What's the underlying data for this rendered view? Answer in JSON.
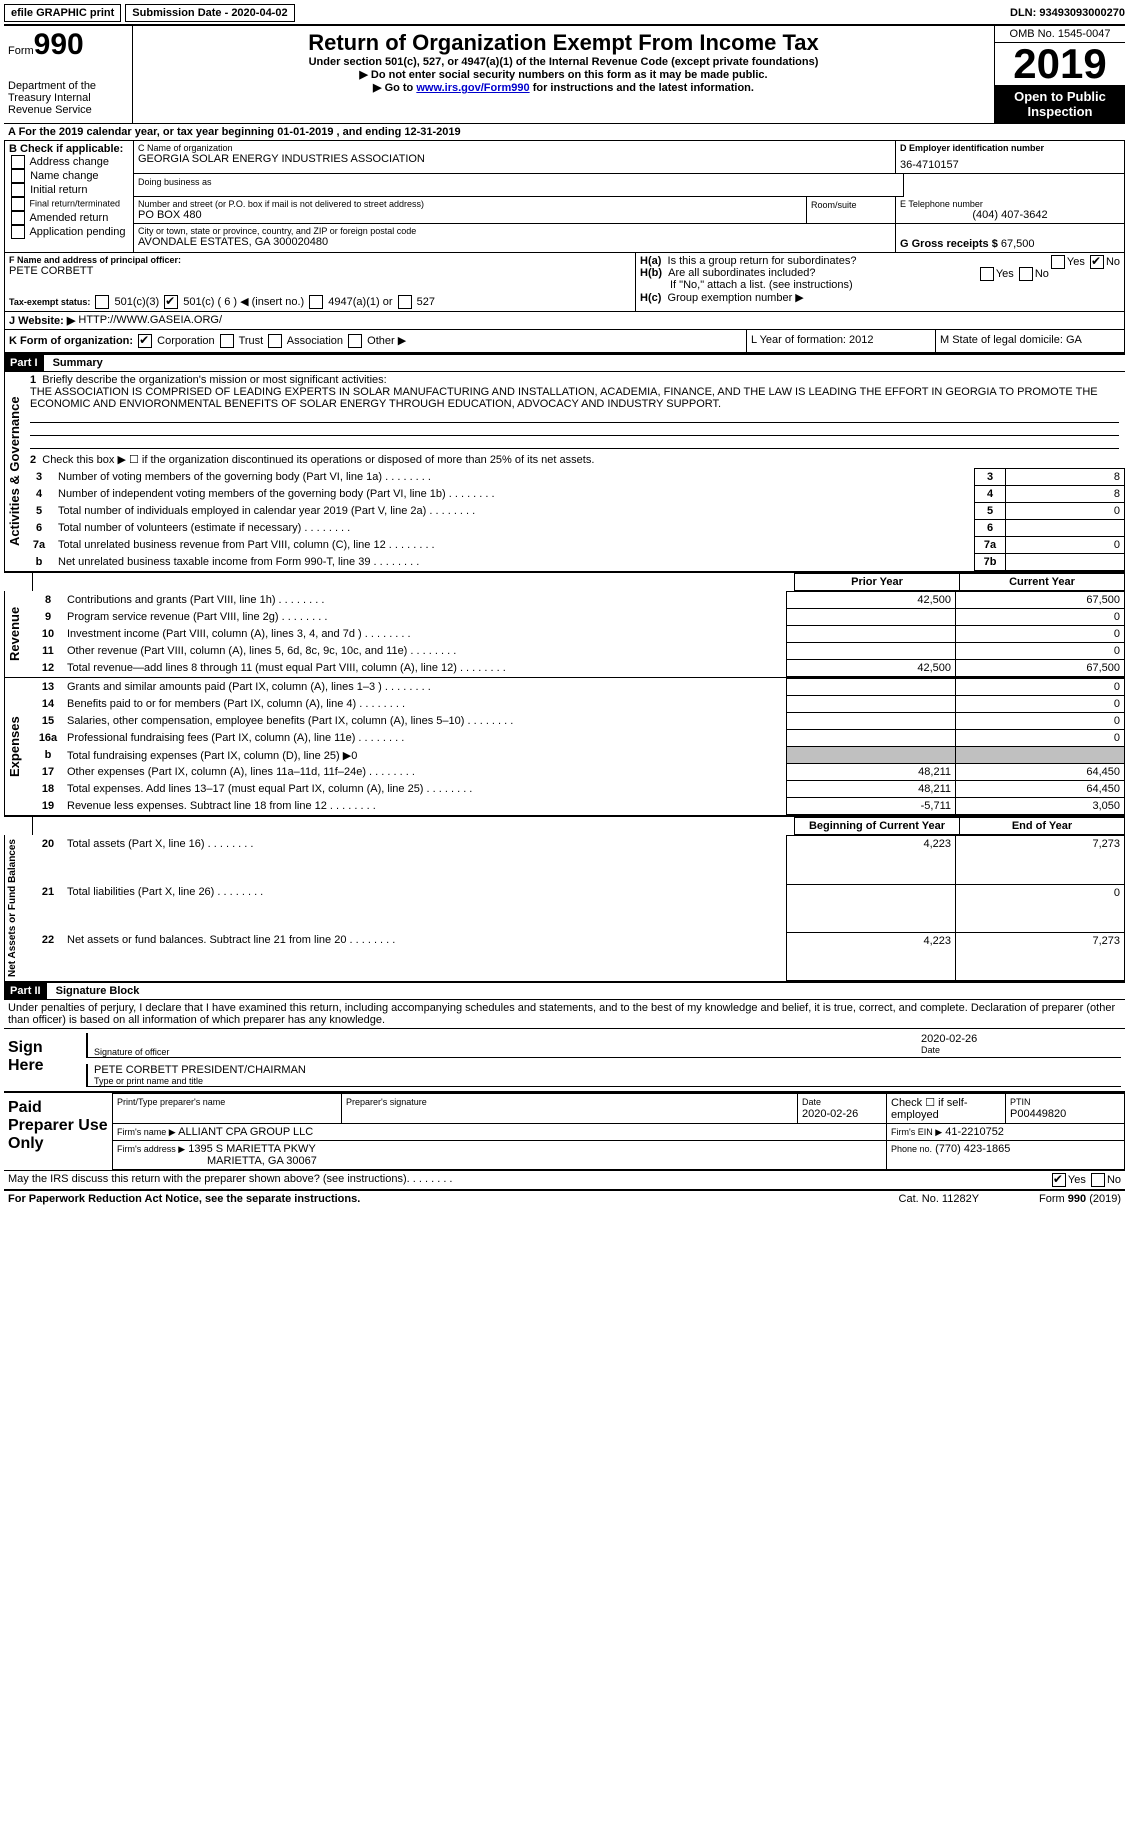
{
  "topbar": {
    "efile": "efile GRAPHIC print",
    "submission": "Submission Date - 2020-04-02",
    "dln": "DLN: 93493093000270"
  },
  "header": {
    "form_word": "Form",
    "form_num": "990",
    "dept": "Department of the Treasury\nInternal Revenue Service",
    "title": "Return of Organization Exempt From Income Tax",
    "sub1": "Under section 501(c), 527, or 4947(a)(1) of the Internal Revenue Code (except private foundations)",
    "sub2": "▶ Do not enter social security numbers on this form as it may be made public.",
    "sub3_pre": "▶ Go to ",
    "sub3_link": "www.irs.gov/Form990",
    "sub3_post": " for instructions and the latest information.",
    "omb": "OMB No. 1545-0047",
    "year": "2019",
    "open": "Open to Public Inspection"
  },
  "lineA": "A For the 2019 calendar year, or tax year beginning 01-01-2019    , and ending 12-31-2019",
  "boxB": {
    "title": "B Check if applicable:",
    "opts": [
      "Address change",
      "Name change",
      "Initial return",
      "Final return/terminated",
      "Amended return",
      "Application pending"
    ]
  },
  "boxC": {
    "label": "C Name of organization",
    "name": "GEORGIA SOLAR ENERGY INDUSTRIES ASSOCIATION",
    "dba": "Doing business as",
    "street_label": "Number and street (or P.O. box if mail is not delivered to street address)",
    "street": "PO BOX 480",
    "room_label": "Room/suite",
    "city_label": "City or town, state or province, country, and ZIP or foreign postal code",
    "city": "AVONDALE ESTATES, GA  300020480"
  },
  "boxD": {
    "label": "D Employer identification number",
    "value": "36-4710157"
  },
  "boxE": {
    "label": "E Telephone number",
    "value": "(404) 407-3642"
  },
  "boxG": {
    "label": "G Gross receipts $",
    "value": "67,500"
  },
  "boxF": {
    "label": "F Name and address of principal officer:",
    "value": "PETE CORBETT"
  },
  "boxH": {
    "a": "Is this a group return for subordinates?",
    "b": "Are all subordinates included?",
    "note": "If \"No,\" attach a list. (see instructions)",
    "c": "Group exemption number ▶"
  },
  "taxExempt": {
    "label": "Tax-exempt status:",
    "c3": "501(c)(3)",
    "c": "501(c) ( 6 ) ◀ (insert no.)",
    "a1": "4947(a)(1) or",
    "s527": "527"
  },
  "lineJ": {
    "label": "J   Website: ▶",
    "value": "HTTP://WWW.GASEIA.ORG/"
  },
  "lineK": {
    "label": "K Form of organization:",
    "corp": "Corporation",
    "trust": "Trust",
    "assoc": "Association",
    "other": "Other ▶"
  },
  "lineL": "L Year of formation: 2012",
  "lineM": "M State of legal domicile: GA",
  "part1": {
    "header": "Part I",
    "title": "Summary"
  },
  "summary": {
    "l1_label": "Briefly describe the organization's mission or most significant activities:",
    "l1_text": "THE ASSOCIATION IS COMPRISED OF LEADING EXPERTS IN SOLAR MANUFACTURING AND INSTALLATION, ACADEMIA, FINANCE, AND THE LAW IS LEADING THE EFFORT IN GEORGIA TO PROMOTE THE ECONOMIC AND ENVIORONMENTAL BENEFITS OF SOLAR ENERGY THROUGH EDUCATION, ADVOCACY AND INDUSTRY SUPPORT.",
    "l2": "Check this box ▶ ☐  if the organization discontinued its operations or disposed of more than 25% of its net assets.",
    "rows": [
      {
        "n": "3",
        "label": "Number of voting members of the governing body (Part VI, line 1a)",
        "box": "3",
        "val": "8"
      },
      {
        "n": "4",
        "label": "Number of independent voting members of the governing body (Part VI, line 1b)",
        "box": "4",
        "val": "8"
      },
      {
        "n": "5",
        "label": "Total number of individuals employed in calendar year 2019 (Part V, line 2a)",
        "box": "5",
        "val": "0"
      },
      {
        "n": "6",
        "label": "Total number of volunteers (estimate if necessary)",
        "box": "6",
        "val": ""
      },
      {
        "n": "7a",
        "label": "Total unrelated business revenue from Part VIII, column (C), line 12",
        "box": "7a",
        "val": "0"
      },
      {
        "n": "b",
        "label": "Net unrelated business taxable income from Form 990-T, line 39",
        "box": "7b",
        "val": ""
      }
    ],
    "hdr_prior": "Prior Year",
    "hdr_current": "Current Year",
    "revenue": [
      {
        "n": "8",
        "label": "Contributions and grants (Part VIII, line 1h)",
        "p": "42,500",
        "c": "67,500"
      },
      {
        "n": "9",
        "label": "Program service revenue (Part VIII, line 2g)",
        "p": "",
        "c": "0"
      },
      {
        "n": "10",
        "label": "Investment income (Part VIII, column (A), lines 3, 4, and 7d )",
        "p": "",
        "c": "0"
      },
      {
        "n": "11",
        "label": "Other revenue (Part VIII, column (A), lines 5, 6d, 8c, 9c, 10c, and 11e)",
        "p": "",
        "c": "0"
      },
      {
        "n": "12",
        "label": "Total revenue—add lines 8 through 11 (must equal Part VIII, column (A), line 12)",
        "p": "42,500",
        "c": "67,500"
      }
    ],
    "expenses": [
      {
        "n": "13",
        "label": "Grants and similar amounts paid (Part IX, column (A), lines 1–3 )",
        "p": "",
        "c": "0"
      },
      {
        "n": "14",
        "label": "Benefits paid to or for members (Part IX, column (A), line 4)",
        "p": "",
        "c": "0"
      },
      {
        "n": "15",
        "label": "Salaries, other compensation, employee benefits (Part IX, column (A), lines 5–10)",
        "p": "",
        "c": "0"
      },
      {
        "n": "16a",
        "label": "Professional fundraising fees (Part IX, column (A), line 11e)",
        "p": "",
        "c": "0"
      },
      {
        "n": "b",
        "label": "Total fundraising expenses (Part IX, column (D), line 25) ▶0",
        "p": "shade",
        "c": "shade"
      },
      {
        "n": "17",
        "label": "Other expenses (Part IX, column (A), lines 11a–11d, 11f–24e)",
        "p": "48,211",
        "c": "64,450"
      },
      {
        "n": "18",
        "label": "Total expenses. Add lines 13–17 (must equal Part IX, column (A), line 25)",
        "p": "48,211",
        "c": "64,450"
      },
      {
        "n": "19",
        "label": "Revenue less expenses. Subtract line 18 from line 12",
        "p": "-5,711",
        "c": "3,050"
      }
    ],
    "hdr_begin": "Beginning of Current Year",
    "hdr_end": "End of Year",
    "netassets": [
      {
        "n": "20",
        "label": "Total assets (Part X, line 16)",
        "p": "4,223",
        "c": "7,273"
      },
      {
        "n": "21",
        "label": "Total liabilities (Part X, line 26)",
        "p": "",
        "c": "0"
      },
      {
        "n": "22",
        "label": "Net assets or fund balances. Subtract line 21 from line 20",
        "p": "4,223",
        "c": "7,273"
      }
    ],
    "side_gov": "Activities & Governance",
    "side_rev": "Revenue",
    "side_exp": "Expenses",
    "side_net": "Net Assets or Fund Balances"
  },
  "part2": {
    "header": "Part II",
    "title": "Signature Block"
  },
  "sig": {
    "penalty": "Under penalties of perjury, I declare that I have examined this return, including accompanying schedules and statements, and to the best of my knowledge and belief, it is true, correct, and complete. Declaration of preparer (other than officer) is based on all information of which preparer has any knowledge.",
    "sign_here": "Sign Here",
    "sig_officer": "Signature of officer",
    "date1": "2020-02-26",
    "date_lbl": "Date",
    "name_title": "PETE CORBETT  PRESIDENT/CHAIRMAN",
    "type_name": "Type or print name and title",
    "paid": "Paid Preparer Use Only",
    "prep_name_lbl": "Print/Type preparer's name",
    "prep_sig_lbl": "Preparer's signature",
    "prep_date": "2020-02-26",
    "check_if": "Check ☐ if self-employed",
    "ptin_lbl": "PTIN",
    "ptin": "P00449820",
    "firm_name_lbl": "Firm's name    ▶",
    "firm_name": "ALLIANT CPA GROUP LLC",
    "firm_ein_lbl": "Firm's EIN ▶",
    "firm_ein": "41-2210752",
    "firm_addr_lbl": "Firm's address ▶",
    "firm_addr": "1395 S MARIETTA PKWY",
    "firm_city": "MARIETTA, GA  30067",
    "phone_lbl": "Phone no.",
    "phone": "(770) 423-1865",
    "discuss": "May the IRS discuss this return with the preparer shown above? (see instructions)",
    "paperwork": "For Paperwork Reduction Act Notice, see the separate instructions.",
    "cat": "Cat. No. 11282Y",
    "form_foot": "Form 990 (2019)"
  }
}
